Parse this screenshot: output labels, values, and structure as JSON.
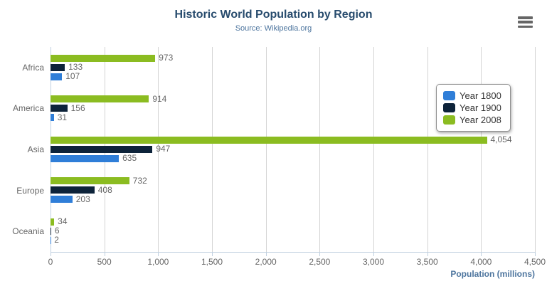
{
  "header": {
    "title": "Historic World Population by Region",
    "subtitle": "Source: Wikipedia.org"
  },
  "toolbar": {
    "menu_icon": "hamburger-menu"
  },
  "colors": {
    "series_year_1800": "#2f7ed8",
    "series_year_1900": "#0d233a",
    "series_year_2008": "#8bbc21",
    "title_text": "#274b6d",
    "subtitle_text": "#4d759e",
    "axis_title_text": "#4d759e",
    "labels_text": "#666666",
    "gridline": "#d4d4d4",
    "axis_line": "#c0d0e0",
    "menu_icon": "#666666"
  },
  "chart_data": {
    "type": "bar",
    "orientation": "horizontal",
    "title": "Historic World Population by Region",
    "subtitle": "Source: Wikipedia.org",
    "categories": [
      "Africa",
      "America",
      "Asia",
      "Europe",
      "Oceania"
    ],
    "series": [
      {
        "name": "Year 1800",
        "color": "#2f7ed8",
        "values": [
          107,
          31,
          635,
          203,
          2
        ]
      },
      {
        "name": "Year 1900",
        "color": "#0d233a",
        "values": [
          133,
          156,
          947,
          408,
          6
        ]
      },
      {
        "name": "Year 2008",
        "color": "#8bbc21",
        "values": [
          973,
          914,
          4054,
          732,
          34
        ]
      }
    ],
    "bar_display_order_top_to_bottom": [
      "Year 2008",
      "Year 1900",
      "Year 1800"
    ],
    "data_labels_visible": true,
    "xlabel": "Population (millions)",
    "ylabel": "",
    "xlim": [
      0,
      4500
    ],
    "x_ticks": [
      0,
      500,
      1000,
      1500,
      2000,
      2500,
      3000,
      3500,
      4000,
      4500
    ],
    "grid": true,
    "legend_position": "middle-right",
    "legend_entries": [
      "Year 1800",
      "Year 1900",
      "Year 2008"
    ]
  }
}
